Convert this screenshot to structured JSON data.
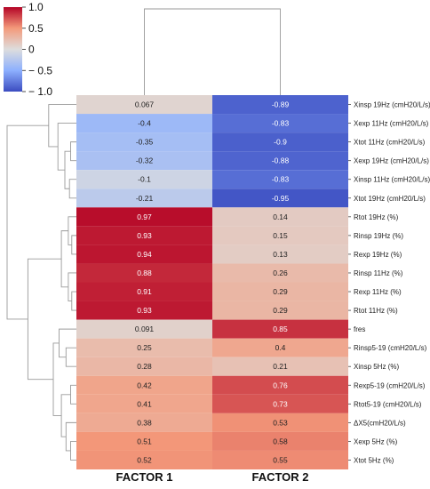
{
  "chart_data": {
    "type": "heatmap",
    "title": "",
    "columns": [
      "FACTOR 1",
      "FACTOR 2"
    ],
    "rows": [
      {
        "label": "Xinsp 19Hz (cmH20/L/s)",
        "values": [
          0.067,
          -0.89
        ]
      },
      {
        "label": "Xexp 11Hz (cmH20/L/s)",
        "values": [
          -0.4,
          -0.83
        ]
      },
      {
        "label": "Xtot 11Hz (cmH20/L/s)",
        "values": [
          -0.35,
          -0.9
        ]
      },
      {
        "label": "Xexp 19Hz (cmH20/L/s)",
        "values": [
          -0.32,
          -0.88
        ]
      },
      {
        "label": "Xinsp 11Hz (cmH20/L/s)",
        "values": [
          -0.1,
          -0.83
        ]
      },
      {
        "label": "Xtot 19Hz (cmH20/L/s)",
        "values": [
          -0.21,
          -0.95
        ]
      },
      {
        "label": "Rtot 19Hz (%)",
        "values": [
          0.97,
          0.14
        ]
      },
      {
        "label": "Rinsp 19Hz (%)",
        "values": [
          0.93,
          0.15
        ]
      },
      {
        "label": "Rexp 19Hz (%)",
        "values": [
          0.94,
          0.13
        ]
      },
      {
        "label": "Rinsp 11Hz (%)",
        "values": [
          0.88,
          0.26
        ]
      },
      {
        "label": "Rexp 11Hz (%)",
        "values": [
          0.91,
          0.29
        ]
      },
      {
        "label": "Rtot 11Hz (%)",
        "values": [
          0.93,
          0.29
        ]
      },
      {
        "label": "fres",
        "values": [
          0.091,
          0.85
        ]
      },
      {
        "label": "Rinsp5-19 (cmH20/L/s)",
        "values": [
          0.25,
          0.4
        ]
      },
      {
        "label": "Xinsp 5Hz (%)",
        "values": [
          0.28,
          0.21
        ]
      },
      {
        "label": "Rexp5-19 (cmH20/L/s)",
        "values": [
          0.42,
          0.76
        ]
      },
      {
        "label": "Rtot5-19 (cmH20/L/s)",
        "values": [
          0.41,
          0.73
        ]
      },
      {
        "label": "ΔX5(cmH20/L/s)",
        "values": [
          0.38,
          0.53
        ]
      },
      {
        "label": "Xexp 5Hz (%)",
        "values": [
          0.51,
          0.58
        ]
      },
      {
        "label": "Xtot 5Hz (%)",
        "values": [
          0.52,
          0.55
        ]
      }
    ],
    "value_labels": [
      [
        "0.067",
        "-0.89"
      ],
      [
        "-0.4",
        "-0.83"
      ],
      [
        "-0.35",
        "-0.9"
      ],
      [
        "-0.32",
        "-0.88"
      ],
      [
        "-0.1",
        "-0.83"
      ],
      [
        "-0.21",
        "-0.95"
      ],
      [
        "0.97",
        "0.14"
      ],
      [
        "0.93",
        "0.15"
      ],
      [
        "0.94",
        "0.13"
      ],
      [
        "0.88",
        "0.26"
      ],
      [
        "0.91",
        "0.29"
      ],
      [
        "0.93",
        "0.29"
      ],
      [
        "0.091",
        "0.85"
      ],
      [
        "0.25",
        "0.4"
      ],
      [
        "0.28",
        "0.21"
      ],
      [
        "0.42",
        "0.76"
      ],
      [
        "0.41",
        "0.73"
      ],
      [
        "0.38",
        "0.53"
      ],
      [
        "0.51",
        "0.58"
      ],
      [
        "0.52",
        "0.55"
      ]
    ],
    "colorbar": {
      "range": [
        -1.0,
        1.0
      ],
      "colormap": "coolwarm",
      "ticks": [
        1.0,
        0.5,
        0,
        -0.5,
        -1.0
      ],
      "tick_labels": [
        "1.0",
        "0.5",
        "0",
        "− 0.5",
        "− 1.0"
      ]
    },
    "dendrograms": {
      "column": "two columns joined at the top",
      "row": "hierarchical clustering tree on the left"
    }
  }
}
